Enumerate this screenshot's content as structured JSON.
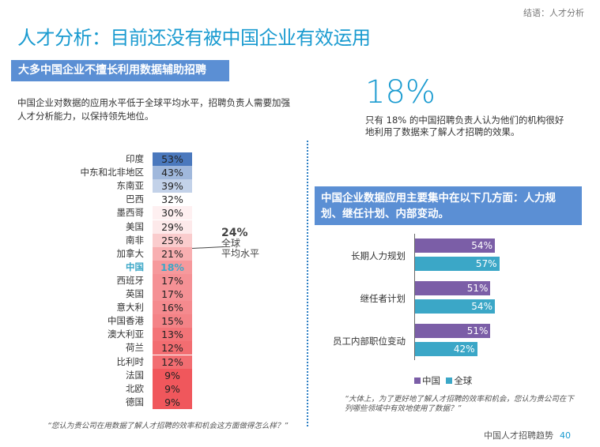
{
  "header": {
    "crumb": "结语：人才分析",
    "title": "人才分析：目前还没有被中国企业有效运用"
  },
  "left": {
    "band": "大多中国企业不擅长利用数据辅助招聘",
    "intro": "中国企业对数据的应用水平低于全球平均水平，招聘负责人需要加强人才分析能力，以保持领先地位。",
    "quote": "“您认为贵公司在用数据了解人才招聘的效率和机会这方面做得怎么样？”"
  },
  "right": {
    "big_stat": "18%",
    "stat_desc": "只有 18% 的中国招聘负责人认为他们的机构很好地利用了数据来了解人才招聘的效果。",
    "band": "中国企业数据应用主要集中在以下几方面：人力规划、继任计划、内部变动。",
    "quote": "“大体上，为了更好地了解人才招聘的效率和机会，您认为贵公司在下列哪些领域中有效地使用了数据？”"
  },
  "footer": {
    "text": "中国人才招聘趋势",
    "page": "40"
  },
  "colors": {
    "accent": "#1a9bd0",
    "band": "#5b8fd4",
    "china": "#7b5ea7",
    "global": "#3ba7c7",
    "high": "#4a78bd",
    "low": "#f0575c"
  },
  "chart_data": [
    {
      "type": "heatmap",
      "categories": [
        "印度",
        "中东和北非地区",
        "东南亚",
        "巴西",
        "墨西哥",
        "美国",
        "南非",
        "加拿大",
        "中国",
        "西班牙",
        "英国",
        "意大利",
        "中国香港",
        "澳大利亚",
        "荷兰",
        "比利时",
        "法国",
        "北欧",
        "德国"
      ],
      "values": [
        53,
        43,
        39,
        32,
        30,
        29,
        25,
        21,
        18,
        17,
        17,
        16,
        15,
        13,
        12,
        12,
        9,
        9,
        9
      ],
      "labels": [
        "53%",
        "43%",
        "39%",
        "32%",
        "30%",
        "29%",
        "25%",
        "21%",
        "18%",
        "17%",
        "17%",
        "16%",
        "15%",
        "13%",
        "12%",
        "12%",
        "9%",
        "9%",
        "9%"
      ],
      "highlight": "中国",
      "annotation": {
        "value": "24%",
        "label1": "全球",
        "label2": "平均水平"
      }
    },
    {
      "type": "bar",
      "orientation": "horizontal",
      "categories": [
        "长期人力规划",
        "继任者计划",
        "员工内部职位变动"
      ],
      "series": [
        {
          "name": "中国",
          "values": [
            54,
            51,
            51
          ],
          "labels": [
            "54%",
            "51%",
            "51%"
          ]
        },
        {
          "name": "全球",
          "values": [
            57,
            54,
            42
          ],
          "labels": [
            "57%",
            "54%",
            "42%"
          ]
        }
      ],
      "xlim": [
        0,
        100
      ]
    }
  ]
}
